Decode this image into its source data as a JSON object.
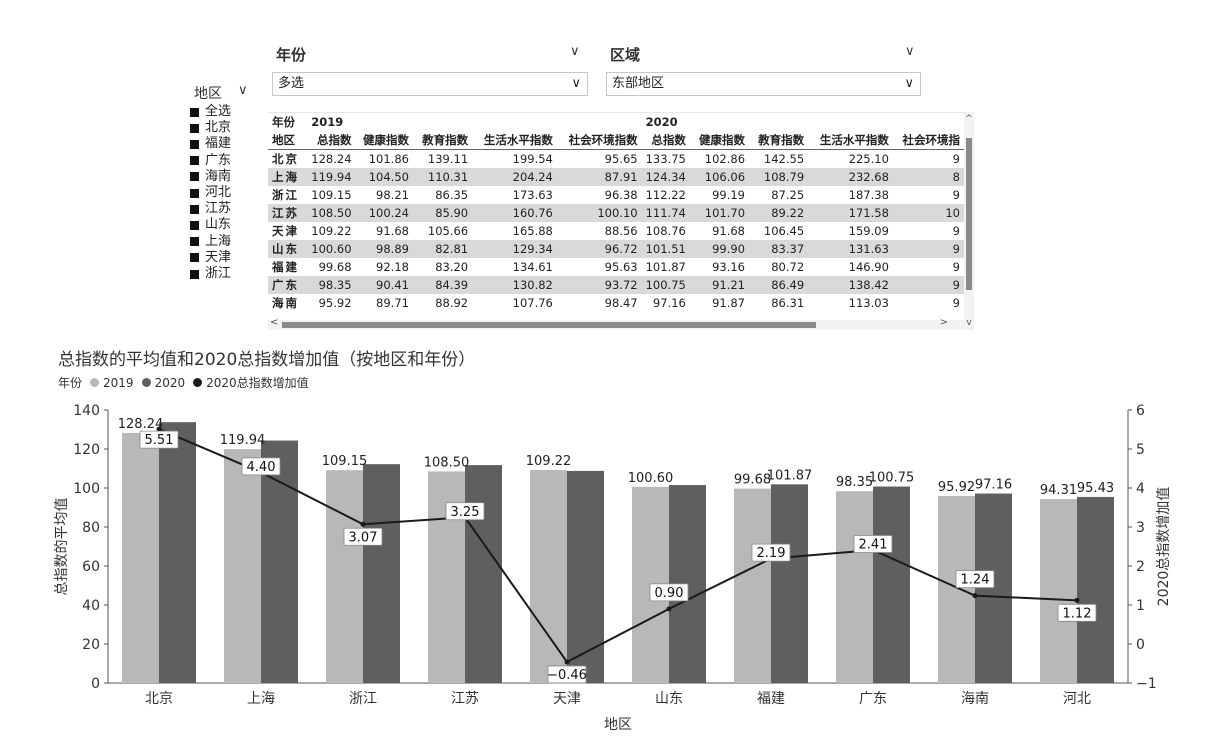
{
  "filters": {
    "year": {
      "title": "年份",
      "value": "多选"
    },
    "region": {
      "title": "区域",
      "value": "东部地区"
    }
  },
  "slicer": {
    "title": "地区",
    "items": [
      "全选",
      "北京",
      "福建",
      "广东",
      "海南",
      "河北",
      "江苏",
      "山东",
      "上海",
      "天津",
      "浙江"
    ]
  },
  "table": {
    "year_label": "年份",
    "region_label": "地区",
    "years": [
      "2019",
      "2020"
    ],
    "columns": [
      "总指数",
      "健康指数",
      "教育指数",
      "生活水平指数",
      "社会环境指数",
      "总指数",
      "健康指数",
      "教育指数",
      "生活水平指数",
      "社会环境指"
    ],
    "rows": [
      {
        "region": "北京",
        "values": [
          "128.24",
          "101.86",
          "139.11",
          "199.54",
          "95.65",
          "133.75",
          "102.86",
          "142.55",
          "225.10",
          "9"
        ]
      },
      {
        "region": "上海",
        "values": [
          "119.94",
          "104.50",
          "110.31",
          "204.24",
          "87.91",
          "124.34",
          "106.06",
          "108.79",
          "232.68",
          "8"
        ]
      },
      {
        "region": "浙江",
        "values": [
          "109.15",
          "98.21",
          "86.35",
          "173.63",
          "96.38",
          "112.22",
          "99.19",
          "87.25",
          "187.38",
          "9"
        ]
      },
      {
        "region": "江苏",
        "values": [
          "108.50",
          "100.24",
          "85.90",
          "160.76",
          "100.10",
          "111.74",
          "101.70",
          "89.22",
          "171.58",
          "10"
        ]
      },
      {
        "region": "天津",
        "values": [
          "109.22",
          "91.68",
          "105.66",
          "165.88",
          "88.56",
          "108.76",
          "91.68",
          "106.45",
          "159.09",
          "9"
        ]
      },
      {
        "region": "山东",
        "values": [
          "100.60",
          "98.89",
          "82.81",
          "129.34",
          "96.72",
          "101.51",
          "99.90",
          "83.37",
          "131.63",
          "9"
        ]
      },
      {
        "region": "福建",
        "values": [
          "99.68",
          "92.18",
          "83.20",
          "134.61",
          "95.63",
          "101.87",
          "93.16",
          "80.72",
          "146.90",
          "9"
        ]
      },
      {
        "region": "广东",
        "values": [
          "98.35",
          "90.41",
          "84.39",
          "130.82",
          "93.72",
          "100.75",
          "91.21",
          "86.49",
          "138.42",
          "9"
        ]
      },
      {
        "region": "海南",
        "values": [
          "95.92",
          "89.71",
          "88.92",
          "107.76",
          "98.47",
          "97.16",
          "91.87",
          "86.31",
          "113.03",
          "9"
        ]
      }
    ]
  },
  "chart": {
    "title": "总指数的平均值和2020总指数增加值（按地区和年份）",
    "legend_label": "年份",
    "legend": [
      {
        "name": "2019",
        "color": "#b8b8b8"
      },
      {
        "name": "2020",
        "color": "#5f5f5f"
      },
      {
        "name": "2020总指数增加值",
        "color": "#1a1a1a"
      }
    ],
    "xlabel": "地区",
    "ylabel": "总指数的平均值",
    "y2label": "2020总指数增加值"
  },
  "chart_data": {
    "type": "bar",
    "categories": [
      "北京",
      "上海",
      "浙江",
      "江苏",
      "天津",
      "山东",
      "福建",
      "广东",
      "海南",
      "河北"
    ],
    "series": [
      {
        "name": "2019",
        "values": [
          128.24,
          119.94,
          109.15,
          108.5,
          109.22,
          100.6,
          99.68,
          98.35,
          95.92,
          94.31
        ]
      },
      {
        "name": "2020",
        "values": [
          133.75,
          124.34,
          112.22,
          111.74,
          108.76,
          101.51,
          101.87,
          100.75,
          97.16,
          95.43
        ]
      },
      {
        "name": "2020总指数增加值",
        "type": "line",
        "axis": "right",
        "values": [
          5.51,
          4.4,
          3.07,
          3.25,
          -0.46,
          0.9,
          2.19,
          2.41,
          1.24,
          1.12
        ]
      }
    ],
    "bar_labels_2019": [
      "128.24",
      "119.94",
      "109.15",
      "108.50",
      "109.22",
      "100.60",
      "99.68",
      "98.35",
      "95.92",
      "94.31"
    ],
    "bar_labels_2020": [
      "",
      "",
      "",
      "",
      "",
      "",
      "101.87",
      "100.75",
      "97.16",
      "95.43"
    ],
    "line_labels": [
      "5.51",
      "4.40",
      "3.07",
      "3.25",
      "−0.46",
      "0.90",
      "2.19",
      "2.41",
      "1.24",
      "1.12"
    ],
    "ylim": [
      0,
      140
    ],
    "yticks": [
      0,
      20,
      40,
      60,
      80,
      100,
      120,
      140
    ],
    "y2lim": [
      -1,
      6
    ],
    "y2ticks": [
      -1,
      0,
      1,
      2,
      3,
      4,
      5,
      6
    ],
    "grid": false,
    "legend_position": "top-left"
  }
}
